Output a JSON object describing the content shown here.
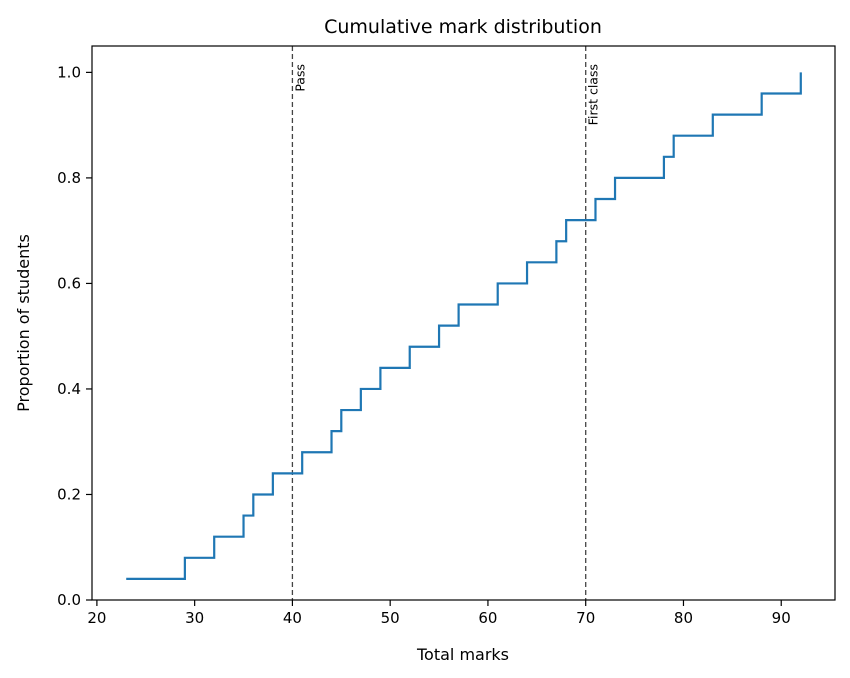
{
  "chart_data": {
    "type": "line",
    "title": "Cumulative mark distribution",
    "xlabel": "Total marks",
    "ylabel": "Proportion of students",
    "xlim": [
      19.5,
      95.5
    ],
    "ylim": [
      0,
      1.05
    ],
    "x_ticks": [
      20,
      30,
      40,
      50,
      60,
      70,
      80,
      90
    ],
    "y_ticks": [
      0.0,
      0.2,
      0.4,
      0.6,
      0.8,
      1.0
    ],
    "y_tick_labels": [
      "0.0",
      "0.2",
      "0.4",
      "0.6",
      "0.8",
      "1.0"
    ],
    "grid": false,
    "series": [
      {
        "color": "#1f77b4",
        "step": "post",
        "x": [
          23,
          29,
          32,
          35,
          36,
          38,
          41,
          44,
          45,
          47,
          49,
          52,
          55,
          57,
          61,
          64,
          67,
          68,
          71,
          73,
          78,
          79,
          83,
          88,
          92
        ],
        "y": [
          0.04,
          0.08,
          0.12,
          0.16,
          0.2,
          0.24,
          0.28,
          0.32,
          0.36,
          0.4,
          0.44,
          0.48,
          0.52,
          0.56,
          0.6,
          0.64,
          0.68,
          0.72,
          0.76,
          0.8,
          0.84,
          0.88,
          0.92,
          0.96,
          1.0
        ]
      }
    ],
    "reference_lines": [
      {
        "x": 40,
        "label": "Pass",
        "style": "dashed",
        "color": "#444444"
      },
      {
        "x": 70,
        "label": "First class",
        "style": "dashed",
        "color": "#444444"
      }
    ]
  }
}
